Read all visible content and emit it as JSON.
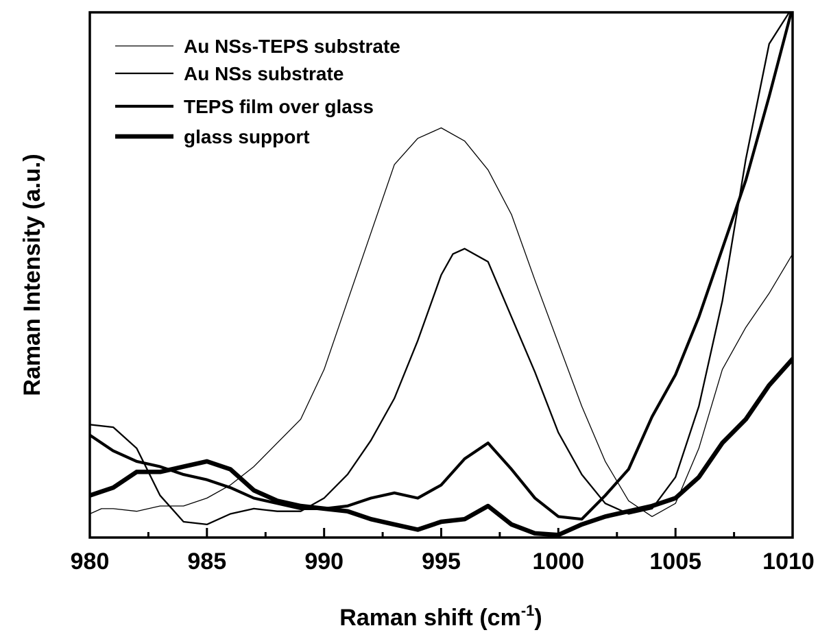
{
  "chart_data": {
    "type": "line",
    "title": "",
    "xlabel_main": "Raman shift ",
    "xlabel_unit_open": "(cm",
    "xlabel_unit_sup": "-1",
    "xlabel_unit_close": ")",
    "ylabel": "Raman Intensity (a.u.)",
    "xlim": [
      980,
      1010
    ],
    "ylim": [
      0,
      100
    ],
    "x_ticks": [
      980,
      985,
      990,
      995,
      1000,
      1005,
      1010
    ],
    "x_tick_labels": [
      "980",
      "985",
      "990",
      "995",
      "1000",
      "1005",
      "1010"
    ],
    "legend_position": "top-left",
    "series": [
      {
        "name": "Au NSs-TEPS substrate",
        "line_weight": "thin",
        "x": [
          980,
          980.5,
          981,
          982,
          983,
          984,
          985,
          986,
          987,
          988,
          989,
          990,
          991,
          992,
          993,
          994,
          995,
          996,
          997,
          998,
          999,
          1000,
          1001,
          1002,
          1003,
          1004,
          1005,
          1006,
          1007,
          1008,
          1009,
          1010
        ],
        "y": [
          4.5,
          5.5,
          5.5,
          5.0,
          6.0,
          6.0,
          7.5,
          10.0,
          13.5,
          18.0,
          22.5,
          32.0,
          45.0,
          58.0,
          71.0,
          76.0,
          78.0,
          75.5,
          70.0,
          61.5,
          49.0,
          37.0,
          25.0,
          14.5,
          7.0,
          4.0,
          6.5,
          17.0,
          32.0,
          40.0,
          46.5,
          54.0
        ]
      },
      {
        "name": "Au NSs substrate",
        "line_weight": "medium",
        "x": [
          980,
          981,
          982,
          983,
          984,
          985,
          986,
          987,
          988,
          989,
          990,
          991,
          992,
          993,
          994,
          995,
          995.5,
          996,
          997,
          998,
          999,
          1000,
          1001,
          1002,
          1003,
          1004,
          1005,
          1006,
          1007,
          1008,
          1009,
          1010
        ],
        "y": [
          21.5,
          21.0,
          17.0,
          8.0,
          3.0,
          2.5,
          4.5,
          5.5,
          5.0,
          5.0,
          7.5,
          12.0,
          18.5,
          26.5,
          37.5,
          50.0,
          54.0,
          55.0,
          52.5,
          42.0,
          31.5,
          20.0,
          12.0,
          6.5,
          4.5,
          5.5,
          11.5,
          25.0,
          45.0,
          72.0,
          94.0,
          101.0
        ]
      },
      {
        "name": "TEPS film over glass",
        "line_weight": "thick",
        "x": [
          980,
          981,
          982,
          983,
          984,
          985,
          986,
          987,
          988,
          989,
          990,
          991,
          992,
          993,
          994,
          995,
          996,
          997,
          998,
          999,
          1000,
          1001,
          1002,
          1003,
          1004,
          1005,
          1006,
          1007,
          1008,
          1009,
          1010
        ],
        "y": [
          19.5,
          16.5,
          14.5,
          13.5,
          12.0,
          11.0,
          9.5,
          7.5,
          6.5,
          5.5,
          5.5,
          6.0,
          7.5,
          8.5,
          7.5,
          10.0,
          15.0,
          18.0,
          13.0,
          7.5,
          4.0,
          3.5,
          8.0,
          13.0,
          23.0,
          31.0,
          42.0,
          55.0,
          68.0,
          84.0,
          101.0
        ]
      },
      {
        "name": "glass support",
        "line_weight": "extra-thick",
        "x": [
          980,
          981,
          982,
          983,
          984,
          985,
          986,
          987,
          988,
          989,
          990,
          991,
          992,
          993,
          994,
          995,
          996,
          997,
          998,
          999,
          1000,
          1001,
          1002,
          1003,
          1004,
          1005,
          1006,
          1007,
          1008,
          1009,
          1010
        ],
        "y": [
          8.0,
          9.5,
          12.5,
          12.5,
          13.5,
          14.5,
          13.0,
          9.0,
          7.0,
          6.0,
          5.5,
          5.0,
          3.5,
          2.5,
          1.5,
          3.0,
          3.5,
          6.0,
          2.5,
          0.8,
          0.5,
          2.5,
          4.0,
          5.0,
          6.0,
          7.5,
          11.5,
          18.0,
          22.5,
          29.0,
          34.0
        ]
      }
    ]
  }
}
